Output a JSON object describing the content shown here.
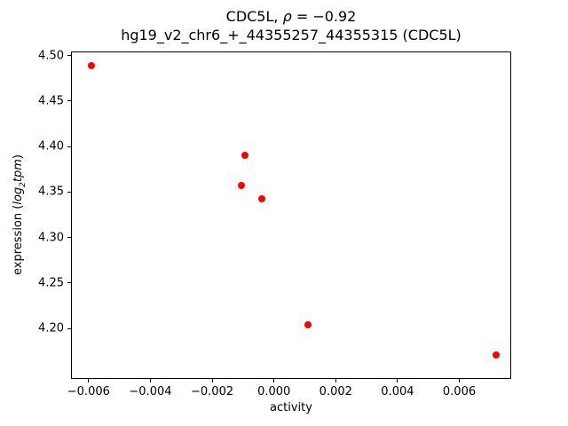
{
  "chart_data": {
    "type": "scatter",
    "title": "CDC5L, ρ = −0.92",
    "title_prefix": "CDC5L, ",
    "title_rho": "ρ",
    "title_rest": " = −0.92",
    "subtitle": "hg19_v2_chr6_+_44355257_44355315 (CDC5L)",
    "xlabel": "activity",
    "ylabel_prefix": "expression (",
    "ylabel_log": "log",
    "ylabel_sub": "2",
    "ylabel_unit": "tpm",
    "ylabel_suffix": ")",
    "gene": "CDC5L",
    "correlation": -0.92,
    "xlim": [
      -0.00657,
      0.00768
    ],
    "ylim": [
      4.1445,
      4.5045
    ],
    "x_tick_values": [
      -0.006,
      -0.004,
      -0.002,
      0.0,
      0.002,
      0.004,
      0.006
    ],
    "x_tick_labels": [
      "−0.006",
      "−0.004",
      "−0.002",
      "0.000",
      "0.002",
      "0.004",
      "0.006"
    ],
    "y_tick_values": [
      4.2,
      4.25,
      4.3,
      4.35,
      4.4,
      4.45,
      4.5
    ],
    "y_tick_labels": [
      "4.20",
      "4.25",
      "4.30",
      "4.35",
      "4.40",
      "4.45",
      "4.50"
    ],
    "points": [
      [
        -0.0059,
        4.489
      ],
      [
        -0.00095,
        4.39
      ],
      [
        -0.00105,
        4.357
      ],
      [
        -0.0004,
        4.343
      ],
      [
        0.0011,
        4.204
      ],
      [
        0.0072,
        4.171
      ]
    ],
    "marker_color": "#ff0000",
    "grid": false,
    "legend": null
  }
}
